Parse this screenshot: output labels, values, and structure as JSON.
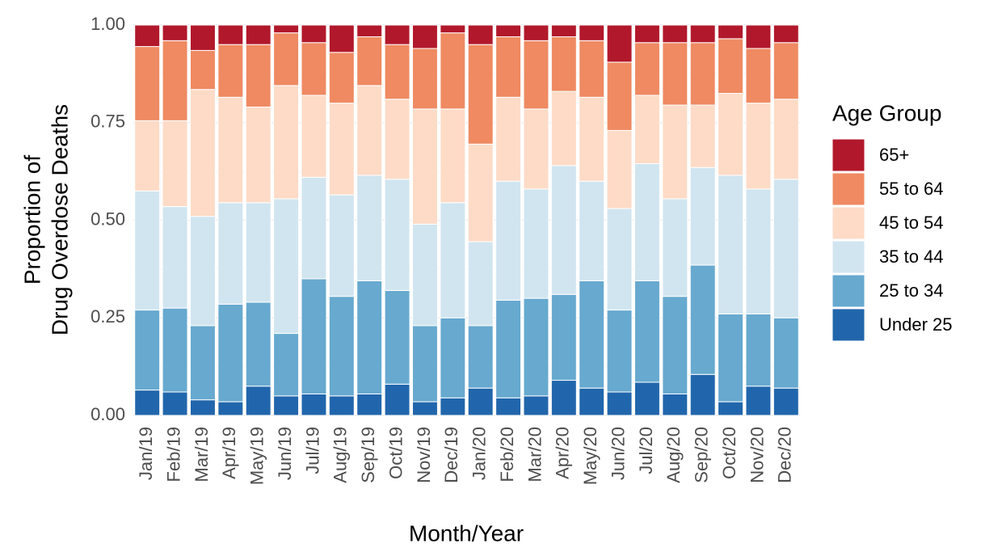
{
  "chart_data": {
    "type": "stacked_bar",
    "xlabel": "Month/Year",
    "ylabel": [
      "Proportion of",
      "Drug Overdose Deaths"
    ],
    "legend_title": "Age Group",
    "legend_position": "right",
    "grid": true,
    "categories": [
      "Jan/19",
      "Feb/19",
      "Mar/19",
      "Apr/19",
      "May/19",
      "Jun/19",
      "Jul/19",
      "Aug/19",
      "Sep/19",
      "Oct/19",
      "Nov/19",
      "Dec/19",
      "Jan/20",
      "Feb/20",
      "Mar/20",
      "Apr/20",
      "May/20",
      "Jun/20",
      "Jul/20",
      "Aug/20",
      "Sep/20",
      "Oct/20",
      "Nov/20",
      "Dec/20"
    ],
    "ylim": [
      0,
      1
    ],
    "yticks": [
      {
        "value": 0,
        "label": "0.00"
      },
      {
        "value": 0.25,
        "label": "0.25"
      },
      {
        "value": 0.5,
        "label": "0.50"
      },
      {
        "value": 0.75,
        "label": "0.75"
      },
      {
        "value": 1,
        "label": "1.00"
      }
    ],
    "series": [
      {
        "name": "Under 25",
        "color": "#2166ac",
        "values": [
          0.065,
          0.06,
          0.04,
          0.035,
          0.075,
          0.05,
          0.055,
          0.05,
          0.055,
          0.08,
          0.035,
          0.045,
          0.07,
          0.045,
          0.05,
          0.09,
          0.07,
          0.06,
          0.085,
          0.055,
          0.105,
          0.035,
          0.075,
          0.07
        ]
      },
      {
        "name": "25 to 34",
        "color": "#67a9cf",
        "values": [
          0.205,
          0.215,
          0.19,
          0.25,
          0.215,
          0.16,
          0.295,
          0.255,
          0.29,
          0.24,
          0.195,
          0.205,
          0.16,
          0.25,
          0.25,
          0.22,
          0.275,
          0.21,
          0.26,
          0.25,
          0.28,
          0.225,
          0.185,
          0.18
        ]
      },
      {
        "name": "35 to 44",
        "color": "#d1e5f0",
        "values": [
          0.305,
          0.26,
          0.28,
          0.26,
          0.255,
          0.345,
          0.26,
          0.26,
          0.27,
          0.285,
          0.26,
          0.295,
          0.215,
          0.305,
          0.28,
          0.33,
          0.255,
          0.26,
          0.3,
          0.25,
          0.25,
          0.355,
          0.32,
          0.355
        ]
      },
      {
        "name": "45 to 54",
        "color": "#fddbc7",
        "values": [
          0.18,
          0.22,
          0.325,
          0.27,
          0.245,
          0.29,
          0.21,
          0.235,
          0.23,
          0.205,
          0.295,
          0.24,
          0.25,
          0.215,
          0.205,
          0.19,
          0.215,
          0.2,
          0.175,
          0.24,
          0.16,
          0.21,
          0.22,
          0.205
        ]
      },
      {
        "name": "55 to 64",
        "color": "#ef8a62",
        "values": [
          0.19,
          0.205,
          0.1,
          0.135,
          0.16,
          0.135,
          0.135,
          0.13,
          0.125,
          0.14,
          0.155,
          0.195,
          0.255,
          0.155,
          0.175,
          0.14,
          0.145,
          0.175,
          0.135,
          0.16,
          0.16,
          0.14,
          0.14,
          0.145
        ]
      },
      {
        "name": "65+",
        "color": "#b2182b",
        "values": [
          0.055,
          0.04,
          0.065,
          0.05,
          0.05,
          0.02,
          0.045,
          0.07,
          0.03,
          0.05,
          0.06,
          0.02,
          0.05,
          0.03,
          0.04,
          0.03,
          0.04,
          0.095,
          0.045,
          0.045,
          0.045,
          0.035,
          0.06,
          0.045
        ]
      }
    ]
  }
}
